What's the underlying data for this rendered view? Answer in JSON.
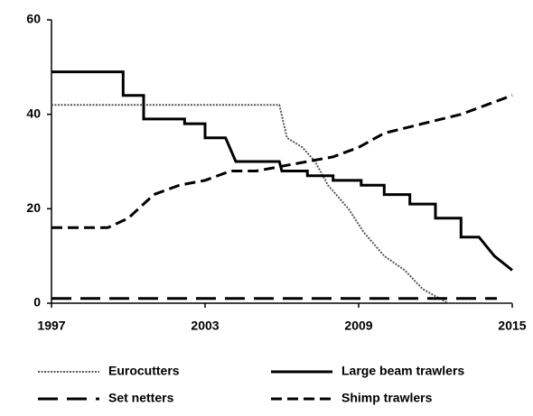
{
  "chart_data": {
    "type": "line",
    "xlim": [
      1997,
      2015
    ],
    "xticks": [
      1997,
      2003,
      2009,
      2015
    ],
    "ylim": [
      0,
      60
    ],
    "yticks": [
      0,
      20,
      40,
      60
    ],
    "grid": false,
    "legend": "bottom",
    "series": [
      {
        "name": "Eurocutters",
        "color": "#555555",
        "dash": "dotted",
        "x": [
          1997,
          2005.9,
          2006.2,
          2006.8,
          2007.3,
          2007.8,
          2008.6,
          2009.2,
          2010,
          2010.8,
          2011.5,
          2012.5,
          2015
        ],
        "values": [
          42,
          42,
          35,
          33,
          30,
          25,
          20,
          15,
          10,
          7,
          3,
          0,
          0
        ]
      },
      {
        "name": "Large beam trawlers",
        "color": "#000000",
        "dash": "solid",
        "x": [
          1997,
          1999.8,
          1999.8,
          2000.6,
          2000.6,
          2002.2,
          2002.2,
          2003,
          2003,
          2003.8,
          2004.2,
          2005.9,
          2006,
          2007,
          2007,
          2008,
          2008,
          2009.1,
          2009.1,
          2010,
          2010,
          2011,
          2011,
          2012,
          2012,
          2013,
          2013,
          2013.7,
          2014.3,
          2015
        ],
        "values": [
          49,
          49,
          44,
          44,
          39,
          39,
          38,
          38,
          35,
          35,
          30,
          30,
          28,
          28,
          27,
          27,
          26,
          26,
          25,
          25,
          23,
          23,
          21,
          21,
          18,
          18,
          14,
          14,
          10,
          7
        ]
      },
      {
        "name": "Set netters",
        "color": "#000000",
        "dash": "long-dash",
        "x": [
          1997,
          2014.4
        ],
        "values": [
          1,
          1
        ]
      },
      {
        "name": "Shimp trawlers",
        "color": "#000000",
        "dash": "dash",
        "x": [
          1997,
          1999.2,
          2000,
          2001,
          2002,
          2003,
          2004,
          2005,
          2006,
          2007,
          2008,
          2009,
          2010,
          2011.5,
          2013,
          2014,
          2015
        ],
        "values": [
          16,
          16,
          18,
          23,
          25,
          26,
          28,
          28,
          29,
          30,
          31,
          33,
          36,
          38,
          40,
          42,
          44
        ]
      }
    ]
  }
}
